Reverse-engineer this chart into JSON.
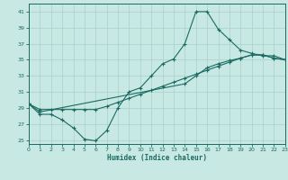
{
  "xlabel": "Humidex (Indice chaleur)",
  "bg_color": "#c8e8e4",
  "grid_color": "#a8d0cc",
  "line_color": "#1a6b60",
  "xlim": [
    0,
    23
  ],
  "ylim": [
    24.5,
    42.0
  ],
  "xticks": [
    0,
    1,
    2,
    3,
    4,
    5,
    6,
    7,
    8,
    9,
    10,
    11,
    12,
    13,
    14,
    15,
    16,
    17,
    18,
    19,
    20,
    21,
    22,
    23
  ],
  "yticks": [
    25,
    27,
    29,
    31,
    33,
    35,
    37,
    39,
    41
  ],
  "line1_x": [
    0,
    1,
    2,
    3,
    4,
    5,
    6,
    7,
    8,
    9,
    10,
    11,
    12,
    13,
    14,
    15,
    16,
    17,
    18,
    19,
    20,
    21,
    22,
    23
  ],
  "line1_y": [
    29.5,
    28.2,
    28.2,
    27.5,
    26.5,
    25.1,
    24.9,
    26.2,
    29.0,
    31.0,
    31.5,
    33.0,
    34.5,
    35.1,
    37.0,
    41.0,
    41.0,
    38.8,
    37.5,
    36.2,
    35.8,
    35.5,
    35.5,
    35.0
  ],
  "line2_x": [
    0,
    1,
    2,
    3,
    4,
    5,
    6,
    7,
    8,
    9,
    10,
    11,
    12,
    13,
    14,
    15,
    16,
    17,
    18,
    19,
    20,
    21,
    22,
    23
  ],
  "line2_y": [
    29.5,
    28.8,
    28.8,
    28.8,
    28.8,
    28.8,
    28.8,
    29.2,
    29.7,
    30.2,
    30.7,
    31.2,
    31.7,
    32.2,
    32.7,
    33.2,
    33.7,
    34.2,
    34.7,
    35.2,
    35.6,
    35.6,
    35.2,
    35.0
  ],
  "line3_x": [
    0,
    1,
    14,
    15,
    16,
    17,
    18,
    19,
    20,
    21,
    22,
    23
  ],
  "line3_y": [
    29.5,
    28.5,
    32.0,
    33.0,
    34.0,
    34.5,
    34.9,
    35.2,
    35.6,
    35.6,
    35.2,
    35.0
  ]
}
